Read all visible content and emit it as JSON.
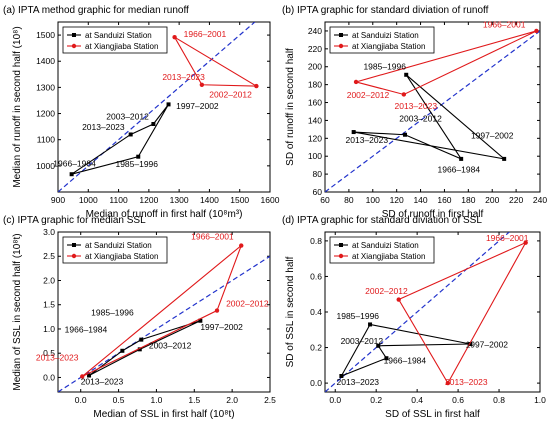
{
  "colors": {
    "sanduizi": "#000000",
    "xiangjiaba": "#e0191b",
    "diagonal": "#2233cc",
    "axis": "#000000"
  },
  "chart_data": [
    {
      "id": "a",
      "type": "line",
      "title": "(a) IPTA method graphic for median runoff",
      "xlabel": "Median of runoff in first half",
      "xlabel_unit": "(10⁸m³)",
      "ylabel": "Median of runoff in second half",
      "ylabel_unit": "(10⁸)",
      "xlim": [
        900,
        1600
      ],
      "ylim": [
        900,
        1550
      ],
      "xticks": [
        900,
        1000,
        1100,
        1200,
        1300,
        1400,
        1500,
        1600
      ],
      "xtick_labels": [
        "900",
        "1000",
        "1100",
        "1200",
        "1300",
        "1400",
        "1500",
        "1600"
      ],
      "yticks": [
        1000,
        1100,
        1200,
        1300,
        1400,
        1500
      ],
      "ytick_labels": [
        "1000",
        "1100",
        "1200",
        "1300",
        "1400",
        "1500"
      ],
      "legend": {
        "position": "top-left",
        "entries": [
          "at  Sanduizi Station",
          "at  Xiangjiaba Station"
        ]
      },
      "series": [
        {
          "name": "at  Sanduizi Station",
          "color_key": "sanduizi",
          "closed": true,
          "points": [
            {
              "label": "1966–1984",
              "x": 945,
              "y": 968
            },
            {
              "label": "2013–2023",
              "x": 1140,
              "y": 1120
            },
            {
              "label": "2003–2012",
              "x": 1215,
              "y": 1160
            },
            {
              "label": "1997–2002",
              "x": 1265,
              "y": 1235
            },
            {
              "label": "1985–1996",
              "x": 1165,
              "y": 1035
            }
          ]
        },
        {
          "name": "at  Xiangjiaba Station",
          "color_key": "xiangjiaba",
          "closed": true,
          "points": [
            {
              "label": "1966–2001",
              "x": 1285,
              "y": 1492
            },
            {
              "label": "2002–2012",
              "x": 1555,
              "y": 1305
            },
            {
              "label": "2013–2023",
              "x": 1375,
              "y": 1310
            }
          ]
        }
      ],
      "annotations": [
        {
          "text": "1966–1984",
          "color_key": "sanduizi",
          "x": 1025,
          "y": 998,
          "anchor": "end"
        },
        {
          "text": "1985–1996",
          "color_key": "sanduizi",
          "x": 1160,
          "y": 995,
          "anchor": "middle"
        },
        {
          "text": "2013–2023",
          "color_key": "sanduizi",
          "x": 1120,
          "y": 1137,
          "anchor": "end"
        },
        {
          "text": "2003–2012",
          "color_key": "sanduizi",
          "x": 1200,
          "y": 1178,
          "anchor": "end"
        },
        {
          "text": "1997–2002",
          "color_key": "sanduizi",
          "x": 1290,
          "y": 1218,
          "anchor": "start"
        },
        {
          "text": "1966–2001",
          "color_key": "xiangjiaba",
          "x": 1315,
          "y": 1492,
          "anchor": "start"
        },
        {
          "text": "2013–2023",
          "color_key": "xiangjiaba",
          "x": 1385,
          "y": 1328,
          "anchor": "end"
        },
        {
          "text": "2002–2012",
          "color_key": "xiangjiaba",
          "x": 1540,
          "y": 1262,
          "anchor": "end"
        }
      ]
    },
    {
      "id": "b",
      "type": "line",
      "title": "(b) IPTA graphic for standard diviation of runoff",
      "xlabel": "SD of runoff in first half",
      "xlabel_unit": "",
      "ylabel": "SD of runoff in second half",
      "ylabel_unit": "",
      "xlim": [
        60,
        240
      ],
      "ylim": [
        60,
        250
      ],
      "xticks": [
        60,
        80,
        100,
        120,
        140,
        160,
        180,
        200,
        220,
        240
      ],
      "xtick_labels": [
        "60",
        "80",
        "100",
        "120",
        "140",
        "160",
        "180",
        "200",
        "220",
        "240"
      ],
      "yticks": [
        60,
        80,
        100,
        120,
        140,
        160,
        180,
        200,
        220,
        240
      ],
      "ytick_labels": [
        "60",
        "80",
        "100",
        "120",
        "140",
        "160",
        "180",
        "200",
        "220",
        "240"
      ],
      "legend": {
        "position": "top-left",
        "entries": [
          "at  Sanduizi Station",
          "at  Xiangjiaba Station"
        ]
      },
      "series": [
        {
          "name": "at  Sanduizi Station",
          "color_key": "sanduizi",
          "closed": true,
          "points": [
            {
              "label": "1985–1996",
              "x": 128,
              "y": 191
            },
            {
              "label": "1997–2002",
              "x": 210,
              "y": 97
            },
            {
              "label": "2013–2023",
              "x": 84,
              "y": 127
            },
            {
              "label": "2003–2012",
              "x": 127,
              "y": 124
            },
            {
              "label": "1966–1984",
              "x": 174,
              "y": 97
            }
          ]
        },
        {
          "name": "at  Xiangjiaba Station",
          "color_key": "xiangjiaba",
          "closed": true,
          "points": [
            {
              "label": "1966–2001",
              "x": 237,
              "y": 240
            },
            {
              "label": "2002–2012",
              "x": 86,
              "y": 183
            },
            {
              "label": "2013–2023",
              "x": 126,
              "y": 169
            }
          ]
        }
      ],
      "annotations": [
        {
          "text": "1985–1996",
          "color_key": "sanduizi",
          "x": 110,
          "y": 197,
          "anchor": "middle"
        },
        {
          "text": "2003–2012",
          "color_key": "sanduizi",
          "x": 140,
          "y": 139,
          "anchor": "middle"
        },
        {
          "text": "2013–2023",
          "color_key": "sanduizi",
          "x": 95,
          "y": 115,
          "anchor": "middle"
        },
        {
          "text": "1997–2002",
          "color_key": "sanduizi",
          "x": 200,
          "y": 120,
          "anchor": "middle"
        },
        {
          "text": "1966–1984",
          "color_key": "sanduizi",
          "x": 172,
          "y": 82,
          "anchor": "middle"
        },
        {
          "text": "1966–2001",
          "color_key": "xiangjiaba",
          "x": 210,
          "y": 244,
          "anchor": "middle"
        },
        {
          "text": "2002–2012",
          "color_key": "xiangjiaba",
          "x": 96,
          "y": 165,
          "anchor": "middle"
        },
        {
          "text": "2013–2023",
          "color_key": "xiangjiaba",
          "x": 136,
          "y": 153,
          "anchor": "middle"
        }
      ]
    },
    {
      "id": "c",
      "type": "line",
      "title": "(c) IPTA graphic for median SSL",
      "xlabel": "Median of SSL in first half",
      "xlabel_unit": "(10⁸t)",
      "ylabel": "Median of SSL in second half",
      "ylabel_unit": "(10⁸t)",
      "xlim": [
        -0.3,
        2.5
      ],
      "ylim": [
        -0.3,
        3.0
      ],
      "xticks": [
        0.0,
        0.5,
        1.0,
        1.5,
        2.0,
        2.5
      ],
      "xtick_labels": [
        "0.0",
        "0.5",
        "1.0",
        "1.5",
        "2.0",
        "2.5"
      ],
      "yticks": [
        0.0,
        0.5,
        1.0,
        1.5,
        2.0,
        2.5,
        3.0
      ],
      "ytick_labels": [
        "0.0",
        "0.5",
        "1.0",
        "1.5",
        "2.0",
        "2.5",
        "3.0"
      ],
      "legend": {
        "position": "top-left",
        "entries": [
          "at  Sanduizi Station",
          "at  Xiangjiaba Station"
        ]
      },
      "series": [
        {
          "name": "at  Sanduizi Station",
          "color_key": "sanduizi",
          "closed": true,
          "points": [
            {
              "label": "1966–1984",
              "x": 0.55,
              "y": 0.55
            },
            {
              "label": "1985–1996",
              "x": 0.8,
              "y": 0.78
            },
            {
              "label": "1997–2002",
              "x": 1.58,
              "y": 1.17
            },
            {
              "label": "2003–2012",
              "x": 0.78,
              "y": 0.58
            },
            {
              "label": "2013–2023",
              "x": 0.11,
              "y": 0.04
            }
          ]
        },
        {
          "name": "at  Xiangjiaba Station",
          "color_key": "xiangjiaba",
          "closed": true,
          "points": [
            {
              "label": "2013–2023",
              "x": 0.02,
              "y": 0.02
            },
            {
              "label": "2002–2012",
              "x": 1.8,
              "y": 1.38
            },
            {
              "label": "1966–2001",
              "x": 2.12,
              "y": 2.72
            }
          ]
        }
      ],
      "annotations": [
        {
          "text": "1985–1996",
          "color_key": "sanduizi",
          "x": 0.7,
          "y": 1.28,
          "anchor": "end"
        },
        {
          "text": "1966–1984",
          "color_key": "sanduizi",
          "x": 0.35,
          "y": 0.93,
          "anchor": "end"
        },
        {
          "text": "1997–2002",
          "color_key": "sanduizi",
          "x": 1.58,
          "y": 0.98,
          "anchor": "start"
        },
        {
          "text": "2003–2012",
          "color_key": "sanduizi",
          "x": 0.9,
          "y": 0.6,
          "anchor": "start"
        },
        {
          "text": "2013–2023",
          "color_key": "sanduizi",
          "x": 0.0,
          "y": -0.15,
          "anchor": "start"
        },
        {
          "text": "2013–2023",
          "color_key": "xiangjiaba",
          "x": -0.03,
          "y": 0.35,
          "anchor": "end"
        },
        {
          "text": "2002–2012",
          "color_key": "xiangjiaba",
          "x": 1.92,
          "y": 1.46,
          "anchor": "start"
        },
        {
          "text": "1966–2001",
          "color_key": "xiangjiaba",
          "x": 2.02,
          "y": 2.85,
          "anchor": "end"
        }
      ]
    },
    {
      "id": "d",
      "type": "line",
      "title": "(d) IPTA graphic for standard diviation of SSL",
      "xlabel": "SD of SSL in first half",
      "xlabel_unit": "",
      "ylabel": "SD of SSL in second half",
      "ylabel_unit": "",
      "xlim": [
        -0.05,
        1.0
      ],
      "ylim": [
        -0.05,
        0.85
      ],
      "xticks": [
        0.0,
        0.2,
        0.4,
        0.6,
        0.8,
        1.0
      ],
      "xtick_labels": [
        "0.0",
        "0.2",
        "0.4",
        "0.6",
        "0.8",
        "1.0"
      ],
      "yticks": [
        0.0,
        0.2,
        0.4,
        0.6,
        0.8
      ],
      "ytick_labels": [
        "0.0",
        "0.2",
        "0.4",
        "0.6",
        "0.8"
      ],
      "legend": {
        "position": "top-left",
        "entries": [
          "at  Sanduizi Station",
          "at  Xiangjiaba Station"
        ]
      },
      "series": [
        {
          "name": "at  Sanduizi Station",
          "color_key": "sanduizi",
          "closed": true,
          "points": [
            {
              "label": "1985–1996",
              "x": 0.17,
              "y": 0.33
            },
            {
              "label": "1997–2002",
              "x": 0.66,
              "y": 0.22
            },
            {
              "label": "2003–2012",
              "x": 0.21,
              "y": 0.21
            },
            {
              "label": "1966–1984",
              "x": 0.25,
              "y": 0.14
            },
            {
              "label": "2013–2023",
              "x": 0.03,
              "y": 0.04
            }
          ]
        },
        {
          "name": "at  Xiangjiaba Station",
          "color_key": "xiangjiaba",
          "closed": true,
          "points": [
            {
              "label": "1966–2001",
              "x": 0.93,
              "y": 0.79
            },
            {
              "label": "2002–2012",
              "x": 0.31,
              "y": 0.47
            },
            {
              "label": "2013–2023",
              "x": 0.55,
              "y": 0.0
            }
          ]
        }
      ],
      "annotations": [
        {
          "text": "1985–1996",
          "color_key": "sanduizi",
          "x": 0.11,
          "y": 0.36,
          "anchor": "middle"
        },
        {
          "text": "2003–2012",
          "color_key": "sanduizi",
          "x": 0.13,
          "y": 0.22,
          "anchor": "middle"
        },
        {
          "text": "1997–2002",
          "color_key": "sanduizi",
          "x": 0.74,
          "y": 0.2,
          "anchor": "middle"
        },
        {
          "text": "1966–1984",
          "color_key": "sanduizi",
          "x": 0.34,
          "y": 0.11,
          "anchor": "middle"
        },
        {
          "text": "2013–2023",
          "color_key": "sanduizi",
          "x": 0.11,
          "y": -0.01,
          "anchor": "middle"
        },
        {
          "text": "2002–2012",
          "color_key": "xiangjiaba",
          "x": 0.25,
          "y": 0.5,
          "anchor": "middle"
        },
        {
          "text": "2013–2023",
          "color_key": "xiangjiaba",
          "x": 0.64,
          "y": -0.01,
          "anchor": "middle"
        },
        {
          "text": "1966–2001",
          "color_key": "xiangjiaba",
          "x": 0.84,
          "y": 0.8,
          "anchor": "middle"
        }
      ]
    }
  ]
}
